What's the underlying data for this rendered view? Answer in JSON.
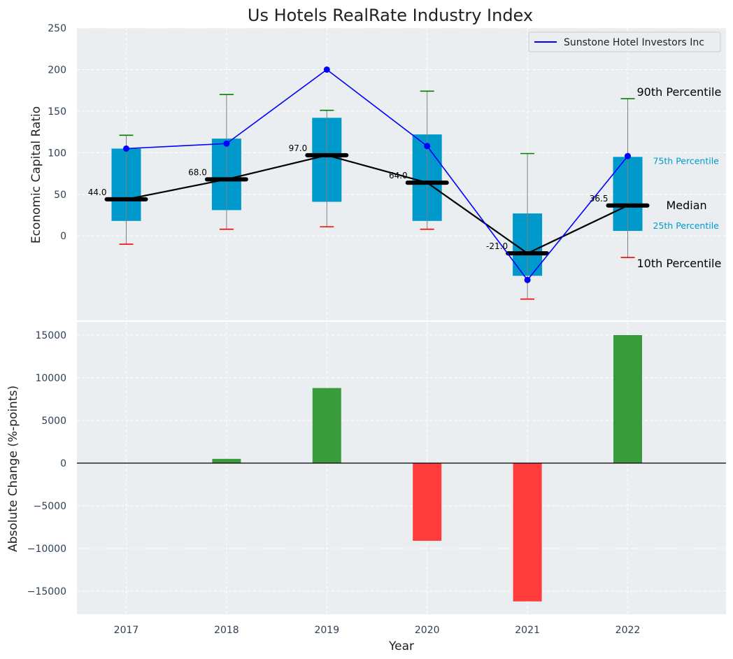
{
  "chart_data": [
    {
      "type": "box",
      "title": "Us Hotels RealRate Industry Index",
      "ylabel": "Economic Capital Ratio",
      "xlabel": "",
      "categories": [
        "2017",
        "2018",
        "2019",
        "2020",
        "2021",
        "2022"
      ],
      "ylim": [
        -95,
        250
      ],
      "yticks": [
        0,
        50,
        100,
        150,
        200,
        250
      ],
      "grid": true,
      "legend": {
        "position": "top-right",
        "entries": [
          "Sunstone Hotel Investors Inc"
        ]
      },
      "percentiles": {
        "p10": [
          -10,
          8,
          11,
          8,
          -76,
          -26
        ],
        "p25": [
          18,
          31,
          41,
          18,
          -48,
          6
        ],
        "median": [
          44.0,
          68.0,
          97.0,
          64.0,
          -21.0,
          36.5
        ],
        "p75": [
          105,
          117,
          142,
          122,
          27,
          95
        ],
        "p90": [
          121,
          170,
          151,
          174,
          99,
          165
        ]
      },
      "median_labels": [
        "44.0",
        "68.0",
        "97.0",
        "64.0",
        "-21.0",
        "36.5"
      ],
      "series": [
        {
          "name": "Sunstone Hotel Investors Inc",
          "values": [
            105,
            111,
            200,
            108,
            -53,
            96
          ],
          "color": "#0000ff"
        }
      ],
      "percentile_labels": {
        "p90": "90th Percentile",
        "p75": "75th Percentile",
        "median": "Median",
        "p25": "25th Percentile",
        "p10": "10th Percentile"
      },
      "colors": {
        "box": "#0099cc",
        "whisker": "#808080",
        "p90_cap": "#008000",
        "p10_cap": "#ff0000",
        "median": "#000000",
        "background": "#eaeef0"
      }
    },
    {
      "type": "bar",
      "title": "",
      "ylabel": "Absolute Change (%-points)",
      "xlabel": "Year",
      "categories": [
        "2017",
        "2018",
        "2019",
        "2020",
        "2021",
        "2022"
      ],
      "values": [
        0,
        500,
        8800,
        -9100,
        -16200,
        15000
      ],
      "ylim": [
        -17600,
        16000
      ],
      "yticks": [
        -15000,
        -10000,
        -5000,
        0,
        5000,
        10000,
        15000
      ],
      "ytick_labels": [
        "−15000",
        "−10000",
        "−5000",
        "0",
        "5000",
        "10000",
        "15000"
      ],
      "grid": true,
      "colors": {
        "positive": "#3a9b3d",
        "negative": "#ff3b3b",
        "zero_line": "#000000"
      }
    }
  ]
}
